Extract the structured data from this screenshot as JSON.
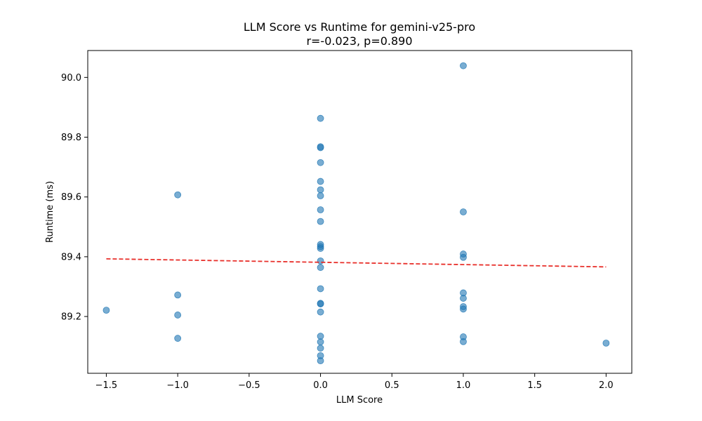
{
  "chart_data": {
    "type": "scatter",
    "title": "LLM Score vs Runtime for gemini-v25-pro",
    "subtitle": "r=-0.023, p=0.890",
    "xlabel": "LLM Score",
    "ylabel": "Runtime (ms)",
    "xlim": [
      -1.63,
      2.18
    ],
    "ylim": [
      89.01,
      90.09
    ],
    "xticks": [
      -1.5,
      -1.0,
      -0.5,
      0.0,
      0.5,
      1.0,
      1.5,
      2.0
    ],
    "xtick_labels": [
      "−1.5",
      "−1.0",
      "−0.5",
      "0.0",
      "0.5",
      "1.0",
      "1.5",
      "2.0"
    ],
    "yticks": [
      89.2,
      89.4,
      89.6,
      89.8,
      90.0
    ],
    "ytick_labels": [
      "89.2",
      "89.4",
      "89.6",
      "89.8",
      "90.0"
    ],
    "grid": false,
    "point_color": "#1f77b4",
    "points": [
      {
        "x": -1.5,
        "y": 89.221
      },
      {
        "x": -1.0,
        "y": 89.607
      },
      {
        "x": -1.0,
        "y": 89.272
      },
      {
        "x": -1.0,
        "y": 89.205
      },
      {
        "x": -1.0,
        "y": 89.127
      },
      {
        "x": 0.0,
        "y": 89.863
      },
      {
        "x": 0.0,
        "y": 89.768
      },
      {
        "x": 0.0,
        "y": 89.765
      },
      {
        "x": 0.0,
        "y": 89.715
      },
      {
        "x": 0.0,
        "y": 89.652
      },
      {
        "x": 0.0,
        "y": 89.624
      },
      {
        "x": 0.0,
        "y": 89.604
      },
      {
        "x": 0.0,
        "y": 89.557
      },
      {
        "x": 0.0,
        "y": 89.518
      },
      {
        "x": 0.0,
        "y": 89.441
      },
      {
        "x": 0.0,
        "y": 89.434
      },
      {
        "x": 0.0,
        "y": 89.428
      },
      {
        "x": 0.0,
        "y": 89.386
      },
      {
        "x": 0.0,
        "y": 89.364
      },
      {
        "x": 0.0,
        "y": 89.293
      },
      {
        "x": 0.0,
        "y": 89.244
      },
      {
        "x": 0.0,
        "y": 89.242
      },
      {
        "x": 0.0,
        "y": 89.215
      },
      {
        "x": 0.0,
        "y": 89.134
      },
      {
        "x": 0.0,
        "y": 89.115
      },
      {
        "x": 0.0,
        "y": 89.094
      },
      {
        "x": 0.0,
        "y": 89.069
      },
      {
        "x": 0.0,
        "y": 89.052
      },
      {
        "x": 1.0,
        "y": 90.039
      },
      {
        "x": 1.0,
        "y": 89.55
      },
      {
        "x": 1.0,
        "y": 89.409
      },
      {
        "x": 1.0,
        "y": 89.398
      },
      {
        "x": 1.0,
        "y": 89.279
      },
      {
        "x": 1.0,
        "y": 89.261
      },
      {
        "x": 1.0,
        "y": 89.233
      },
      {
        "x": 1.0,
        "y": 89.225
      },
      {
        "x": 1.0,
        "y": 89.132
      },
      {
        "x": 1.0,
        "y": 89.116
      },
      {
        "x": 2.0,
        "y": 89.111
      }
    ],
    "trendline": {
      "x": [
        -1.5,
        2.0
      ],
      "y": [
        89.393,
        89.366
      ],
      "style": "dashed",
      "color": "#e8302b"
    }
  }
}
